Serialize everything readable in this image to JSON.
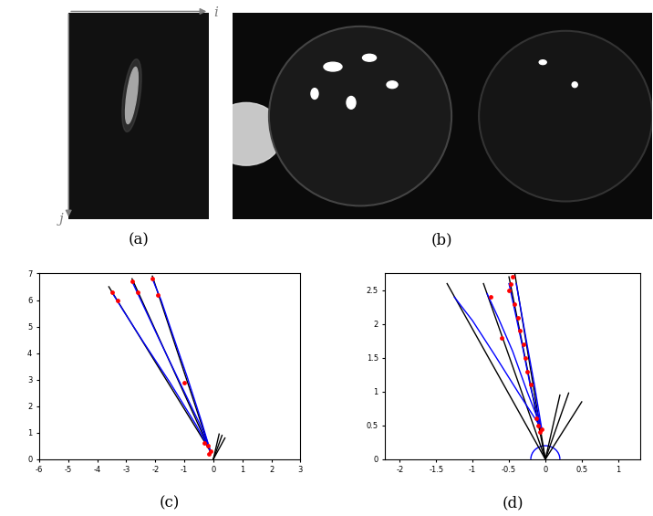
{
  "panels": [
    {
      "label": "(a)",
      "type": "image",
      "axis_labels": {
        "x": "i",
        "y": "j"
      }
    },
    {
      "label": "(b)",
      "type": "image"
    }
  ],
  "chart_data": [
    {
      "type": "line",
      "label": "(c)",
      "xlim": [
        -6,
        3
      ],
      "xticks": [
        -6,
        -5,
        -4,
        -3,
        -2,
        -1,
        0,
        1,
        2,
        3
      ],
      "ylim": [
        0,
        7
      ],
      "yticks": [
        0,
        1,
        2,
        3,
        4,
        5,
        6,
        7
      ],
      "series": [
        {
          "type": "line",
          "color": "black",
          "x": [
            -0.1,
            -3.6
          ],
          "y": [
            0.3,
            6.5
          ]
        },
        {
          "type": "line",
          "color": "black",
          "x": [
            -0.1,
            -2.8
          ],
          "y": [
            0.3,
            6.8
          ]
        },
        {
          "type": "line",
          "color": "black",
          "x": [
            -0.1,
            -2.1
          ],
          "y": [
            0.3,
            6.9
          ]
        },
        {
          "type": "line",
          "color": "black",
          "x": [
            0.0,
            0.3
          ],
          "y": [
            0.0,
            0.9
          ]
        },
        {
          "type": "line",
          "color": "black",
          "x": [
            0.0,
            0.2
          ],
          "y": [
            0.0,
            0.95
          ]
        },
        {
          "type": "line",
          "color": "black",
          "x": [
            0.0,
            0.4
          ],
          "y": [
            0.0,
            0.8
          ]
        },
        {
          "type": "line",
          "color": "blue",
          "x": [
            -0.1,
            -0.6,
            -1.5,
            -2.4,
            -3.1,
            -3.5
          ],
          "y": [
            0.3,
            1.3,
            2.9,
            4.4,
            5.6,
            6.3
          ]
        },
        {
          "type": "line",
          "color": "blue",
          "x": [
            -0.1,
            -0.5,
            -1.2,
            -1.9,
            -2.5,
            -2.8
          ],
          "y": [
            0.3,
            1.4,
            3.0,
            4.6,
            6.0,
            6.7
          ]
        },
        {
          "type": "line",
          "color": "blue",
          "x": [
            -0.1,
            -0.4,
            -0.9,
            -1.4,
            -1.8,
            -2.1
          ],
          "y": [
            0.3,
            1.4,
            3.1,
            4.7,
            6.0,
            6.8
          ]
        },
        {
          "type": "scatter",
          "color": "red",
          "marker": "o",
          "x": [
            -3.5,
            -2.8,
            -2.1,
            -3.3,
            -2.6,
            -1.9,
            -1.0,
            -0.3,
            -0.2,
            -0.1,
            -0.15
          ],
          "y": [
            6.3,
            6.7,
            6.8,
            6.0,
            6.3,
            6.2,
            2.9,
            0.6,
            0.5,
            0.3,
            0.2
          ]
        }
      ]
    },
    {
      "type": "line",
      "label": "(d)",
      "xlim": [
        -2.2,
        1.3
      ],
      "xticks": [
        -2,
        -1.5,
        -1,
        -0.5,
        0,
        0.5,
        1
      ],
      "ylim": [
        0,
        2.75
      ],
      "yticks": [
        0,
        0.5,
        1,
        1.5,
        2,
        2.5
      ],
      "sphere_radius": 0.2,
      "series": [
        {
          "type": "line",
          "color": "black",
          "x": [
            0.0,
            -1.35
          ],
          "y": [
            0.0,
            2.6
          ]
        },
        {
          "type": "line",
          "color": "black",
          "x": [
            0.0,
            -0.85
          ],
          "y": [
            0.0,
            2.6
          ]
        },
        {
          "type": "line",
          "color": "black",
          "x": [
            0.0,
            -0.5
          ],
          "y": [
            0.0,
            2.7
          ]
        },
        {
          "type": "line",
          "color": "black",
          "x": [
            0.0,
            -0.42
          ],
          "y": [
            0.0,
            2.75
          ]
        },
        {
          "type": "line",
          "color": "black",
          "x": [
            0.0,
            0.2
          ],
          "y": [
            0.0,
            0.95
          ]
        },
        {
          "type": "line",
          "color": "black",
          "x": [
            0.0,
            0.32
          ],
          "y": [
            0.0,
            0.98
          ]
        },
        {
          "type": "line",
          "color": "black",
          "x": [
            0.0,
            0.5
          ],
          "y": [
            0.0,
            0.85
          ]
        },
        {
          "type": "line",
          "color": "blue",
          "x": [
            -0.05,
            -0.35,
            -0.7,
            -1.0,
            -1.25
          ],
          "y": [
            0.45,
            0.95,
            1.55,
            2.05,
            2.4
          ]
        },
        {
          "type": "line",
          "color": "blue",
          "x": [
            -0.05,
            -0.25,
            -0.45,
            -0.65,
            -0.8
          ],
          "y": [
            0.45,
            1.0,
            1.6,
            2.1,
            2.45
          ]
        },
        {
          "type": "line",
          "color": "blue",
          "x": [
            -0.05,
            -0.2,
            -0.32,
            -0.43,
            -0.5
          ],
          "y": [
            0.45,
            1.05,
            1.7,
            2.25,
            2.6
          ]
        },
        {
          "type": "line",
          "color": "blue",
          "x": [
            -0.05,
            -0.15,
            -0.26,
            -0.35,
            -0.4
          ],
          "y": [
            0.45,
            1.1,
            1.75,
            2.3,
            2.6
          ]
        },
        {
          "type": "scatter",
          "color": "red",
          "marker": "o",
          "x": [
            -0.45,
            -0.48,
            -0.5,
            -0.42,
            -0.38,
            -0.35,
            -0.3,
            -0.28,
            -0.25,
            -0.2,
            -0.6,
            -0.75,
            -0.1,
            -0.05,
            -0.12,
            -0.08
          ],
          "y": [
            2.7,
            2.6,
            2.5,
            2.3,
            2.1,
            1.9,
            1.7,
            1.5,
            1.3,
            1.1,
            1.8,
            2.4,
            0.5,
            0.45,
            0.6,
            0.4
          ]
        }
      ]
    }
  ]
}
